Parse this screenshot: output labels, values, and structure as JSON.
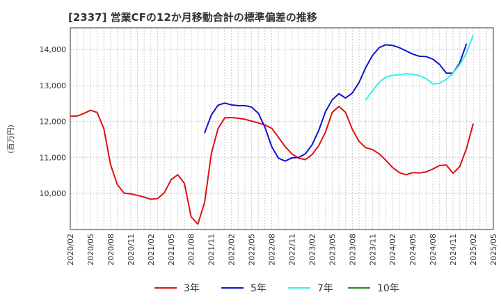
{
  "chart_data": {
    "type": "line",
    "title": "[2337]  営業CFの12か月移動合計の標準偏差の推移",
    "ylabel": "(百万円)",
    "ylim": [
      9000,
      14600
    ],
    "yticks": [
      10000,
      11000,
      12000,
      13000,
      14000
    ],
    "ytick_labels": [
      "10,000",
      "11,000",
      "12,000",
      "13,000",
      "14,000"
    ],
    "xlim": [
      "2020-02",
      "2025-05"
    ],
    "xtick_labels": [
      "2020/02",
      "2020/05",
      "2020/08",
      "2020/11",
      "2021/02",
      "2021/05",
      "2021/08",
      "2021/11",
      "2022/02",
      "2022/05",
      "2022/08",
      "2022/11",
      "2023/02",
      "2023/05",
      "2023/08",
      "2023/11",
      "2024/02",
      "2024/05",
      "2024/08",
      "2024/11",
      "2025/02",
      "2025/05"
    ],
    "grid": true,
    "legend_position": "bottom",
    "series": [
      {
        "name": "3年",
        "color": "#dd1111",
        "start": "2020-02",
        "values": [
          12150,
          12150,
          12220,
          12310,
          12250,
          11800,
          10800,
          10250,
          10010,
          9990,
          9950,
          9900,
          9840,
          9860,
          10020,
          10380,
          10520,
          10280,
          9350,
          9150,
          9750,
          11100,
          11800,
          12100,
          12110,
          12090,
          12060,
          12010,
          11960,
          11900,
          11810,
          11560,
          11300,
          11100,
          10980,
          10940,
          11080,
          11330,
          11700,
          12250,
          12420,
          12250,
          11780,
          11450,
          11270,
          11220,
          11100,
          10920,
          10720,
          10580,
          10520,
          10580,
          10570,
          10600,
          10680,
          10780,
          10790,
          10560,
          10750,
          11250,
          11940
        ]
      },
      {
        "name": "5年",
        "color": "#1111cc",
        "start": "2021-10",
        "values": [
          11680,
          12180,
          12450,
          12510,
          12460,
          12440,
          12440,
          12400,
          12230,
          11830,
          11300,
          10980,
          10900,
          10990,
          11000,
          11100,
          11350,
          11750,
          12270,
          12600,
          12770,
          12650,
          12790,
          13080,
          13500,
          13830,
          14050,
          14130,
          14110,
          14050,
          13960,
          13870,
          13810,
          13800,
          13730,
          13580,
          13340,
          13340,
          13630,
          14160
        ]
      },
      {
        "name": "7年",
        "color": "#33eeee",
        "start": "2023-10",
        "values": [
          12600,
          12850,
          13090,
          13230,
          13280,
          13300,
          13320,
          13310,
          13270,
          13190,
          13040,
          13060,
          13170,
          13340,
          13580,
          13900,
          14400
        ]
      },
      {
        "name": "10年",
        "color": "#228822",
        "start": "2025-02",
        "values": []
      }
    ]
  }
}
